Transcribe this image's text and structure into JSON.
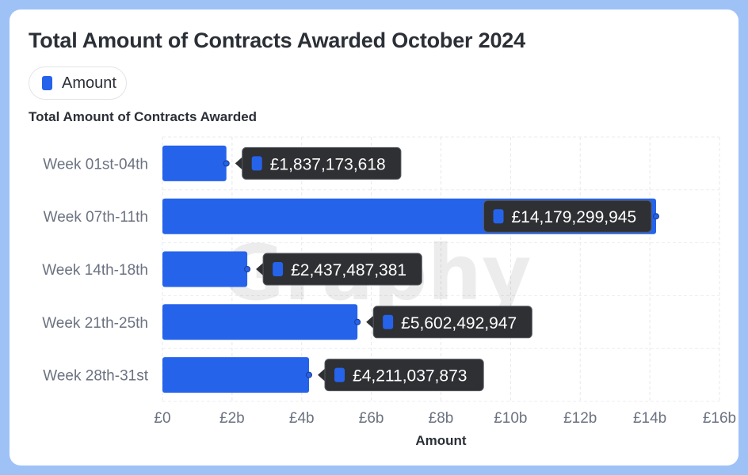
{
  "title": "Total Amount of Contracts Awarded October 2024",
  "legend": {
    "label": "Amount"
  },
  "subtitle": "Total Amount of Contracts Awarded",
  "colors": {
    "bar": "#2563eb",
    "tooltip_bg": "#2f3033",
    "frame": "#9fc2f6"
  },
  "watermark": "Graphy",
  "chart_data": {
    "type": "bar",
    "orientation": "horizontal",
    "categories": [
      "Week 01st-04th",
      "Week 07th-11th",
      "Week 14th-18th",
      "Week 21th-25th",
      "Week 28th-31st"
    ],
    "series": [
      {
        "name": "Amount",
        "values": [
          1837173618,
          14179299945,
          2437487381,
          5602492947,
          4211037873
        ]
      }
    ],
    "value_labels": [
      "£1,837,173,618",
      "£14,179,299,945",
      "£2,437,487,381",
      "£5,602,492,947",
      "£4,211,037,873"
    ],
    "xlabel": "Amount",
    "ylabel": "",
    "xlim": [
      0,
      16000000000
    ],
    "xticks": [
      0,
      2000000000,
      4000000000,
      6000000000,
      8000000000,
      10000000000,
      12000000000,
      14000000000,
      16000000000
    ],
    "xtick_labels": [
      "£0",
      "£2b",
      "£4b",
      "£6b",
      "£8b",
      "£10b",
      "£12b",
      "£14b",
      "£16b"
    ],
    "grid": true,
    "legend_position": "top-left"
  }
}
